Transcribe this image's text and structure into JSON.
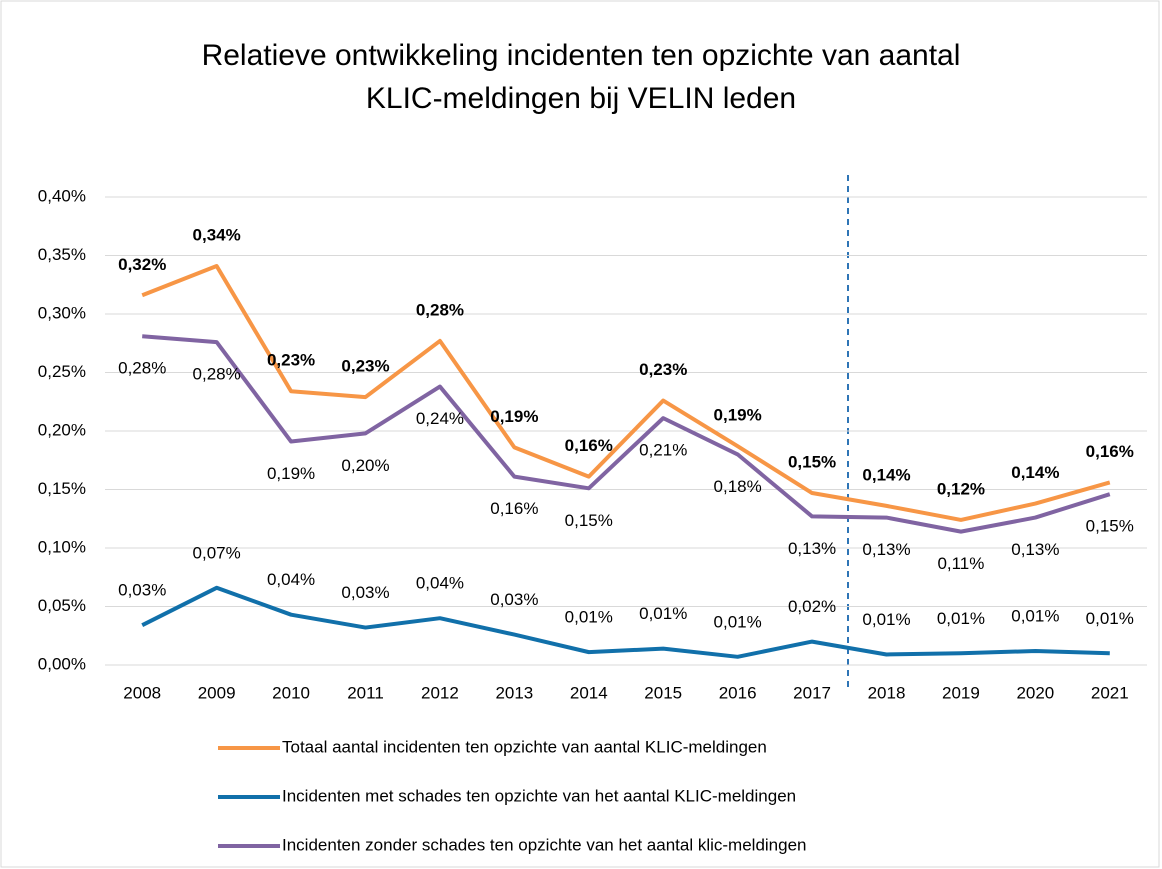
{
  "chart_data": {
    "type": "line",
    "title": "Relatieve ontwikkeling incidenten ten opzichte van aantal KLIC-meldingen bij VELIN leden",
    "categories": [
      "2008",
      "2009",
      "2010",
      "2011",
      "2012",
      "2013",
      "2014",
      "2015",
      "2016",
      "2017",
      "2018",
      "2019",
      "2020",
      "2021"
    ],
    "series": [
      {
        "name": "Totaal aantal incidenten ten opzichte van aantal KLIC-meldingen",
        "color": "#f79646",
        "values": [
          0.316,
          0.341,
          0.234,
          0.229,
          0.277,
          0.186,
          0.161,
          0.226,
          0.187,
          0.147,
          0.136,
          0.124,
          0.138,
          0.156
        ],
        "value_labels": [
          "0,32%",
          "0,34%",
          "0,23%",
          "0,23%",
          "0,28%",
          "0,19%",
          "0,16%",
          "0,23%",
          "0,19%",
          "0,15%",
          "0,14%",
          "0,12%",
          "0,14%",
          "0,16%"
        ]
      },
      {
        "name": "Incidenten met schades ten opzichte van het aantal KLIC-meldingen",
        "color": "#1170aa",
        "values": [
          0.034,
          0.066,
          0.043,
          0.032,
          0.04,
          0.026,
          0.011,
          0.014,
          0.007,
          0.02,
          0.009,
          0.01,
          0.012,
          0.01
        ],
        "value_labels": [
          "0,03%",
          "0,07%",
          "0,04%",
          "0,03%",
          "0,04%",
          "0,03%",
          "0,01%",
          "0,01%",
          "0,01%",
          "0,02%",
          "0,01%",
          "0,01%",
          "0,01%",
          "0,01%"
        ]
      },
      {
        "name": "Incidenten zonder schades ten opzichte van het aantal klic-meldingen",
        "color": "#8064a2",
        "values": [
          0.281,
          0.276,
          0.191,
          0.198,
          0.238,
          0.161,
          0.151,
          0.211,
          0.18,
          0.127,
          0.126,
          0.114,
          0.126,
          0.146
        ],
        "value_labels": [
          "0,28%",
          "0,28%",
          "0,19%",
          "0,20%",
          "0,24%",
          "0,16%",
          "0,15%",
          "0,21%",
          "0,18%",
          "0,13%",
          "0,13%",
          "0,11%",
          "0,13%",
          "0,15%"
        ]
      }
    ],
    "ylim": [
      0,
      0.4
    ],
    "yticks": [
      {
        "value": 0,
        "label": "0,00%"
      },
      {
        "value": 0.05,
        "label": "0,05%"
      },
      {
        "value": 0.1,
        "label": "0,10%"
      },
      {
        "value": 0.15,
        "label": "0,15%"
      },
      {
        "value": 0.2,
        "label": "0,20%"
      },
      {
        "value": 0.25,
        "label": "0,25%"
      },
      {
        "value": 0.3,
        "label": "0,30%"
      },
      {
        "value": 0.35,
        "label": "0,35%"
      },
      {
        "value": 0.4,
        "label": "0,40%"
      }
    ],
    "grid": true
  }
}
